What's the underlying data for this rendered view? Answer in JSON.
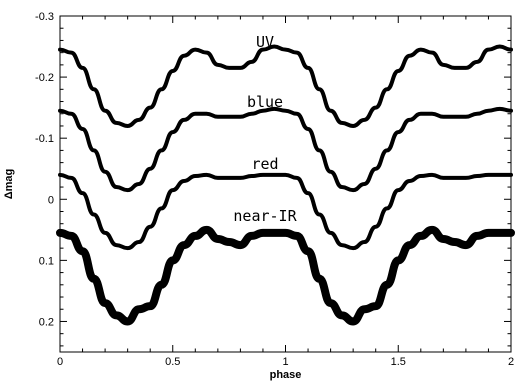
{
  "chart_data": {
    "type": "line",
    "title": "",
    "xlabel": "phase",
    "ylabel": "Δmag",
    "xlim": [
      0,
      2
    ],
    "ylim": [
      -0.3,
      0.25
    ],
    "y_inverted": true,
    "grid": false,
    "x_ticks": [
      0,
      0.5,
      1,
      1.5,
      2
    ],
    "x_tick_labels": [
      "0",
      "0.5",
      "1",
      "1.5",
      "2"
    ],
    "y_ticks": [
      -0.3,
      -0.2,
      -0.1,
      0,
      0.1,
      0.2
    ],
    "y_tick_labels": [
      "-0.3",
      "-0.2",
      "-0.1",
      "0",
      "0.1",
      "0.2"
    ],
    "line_color": "#000000",
    "series": [
      {
        "name": "UV",
        "x": [
          0,
          0.05,
          0.1,
          0.15,
          0.2,
          0.25,
          0.3,
          0.35,
          0.4,
          0.45,
          0.5,
          0.55,
          0.6,
          0.65,
          0.7,
          0.75,
          0.8,
          0.85,
          0.9,
          0.95,
          1.0
        ],
        "y": [
          -0.245,
          -0.24,
          -0.215,
          -0.18,
          -0.145,
          -0.125,
          -0.12,
          -0.13,
          -0.15,
          -0.18,
          -0.21,
          -0.235,
          -0.245,
          -0.24,
          -0.22,
          -0.215,
          -0.215,
          -0.225,
          -0.245,
          -0.25,
          -0.245
        ]
      },
      {
        "name": "blue",
        "x": [
          0,
          0.05,
          0.1,
          0.15,
          0.2,
          0.25,
          0.3,
          0.35,
          0.4,
          0.45,
          0.5,
          0.55,
          0.6,
          0.65,
          0.7,
          0.75,
          0.8,
          0.85,
          0.9,
          0.95,
          1.0
        ],
        "y": [
          -0.145,
          -0.14,
          -0.115,
          -0.08,
          -0.045,
          -0.02,
          -0.015,
          -0.025,
          -0.05,
          -0.08,
          -0.11,
          -0.13,
          -0.14,
          -0.14,
          -0.135,
          -0.135,
          -0.135,
          -0.14,
          -0.145,
          -0.148,
          -0.145
        ]
      },
      {
        "name": "red",
        "x": [
          0,
          0.05,
          0.1,
          0.15,
          0.2,
          0.25,
          0.3,
          0.35,
          0.4,
          0.45,
          0.5,
          0.55,
          0.6,
          0.65,
          0.7,
          0.75,
          0.8,
          0.85,
          0.9,
          0.95,
          1.0
        ],
        "y": [
          -0.04,
          -0.035,
          -0.01,
          0.025,
          0.055,
          0.075,
          0.08,
          0.07,
          0.045,
          0.015,
          -0.015,
          -0.03,
          -0.038,
          -0.04,
          -0.035,
          -0.035,
          -0.035,
          -0.038,
          -0.04,
          -0.04,
          -0.04
        ]
      },
      {
        "name": "near-IR",
        "x": [
          0,
          0.05,
          0.1,
          0.15,
          0.2,
          0.25,
          0.3,
          0.35,
          0.4,
          0.45,
          0.5,
          0.55,
          0.6,
          0.65,
          0.7,
          0.75,
          0.8,
          0.85,
          0.9,
          0.95,
          1.0
        ],
        "y": [
          0.055,
          0.06,
          0.085,
          0.13,
          0.17,
          0.19,
          0.2,
          0.18,
          0.175,
          0.14,
          0.1,
          0.075,
          0.06,
          0.05,
          0.065,
          0.07,
          0.075,
          0.06,
          0.055,
          0.055,
          0.055
        ]
      }
    ]
  }
}
